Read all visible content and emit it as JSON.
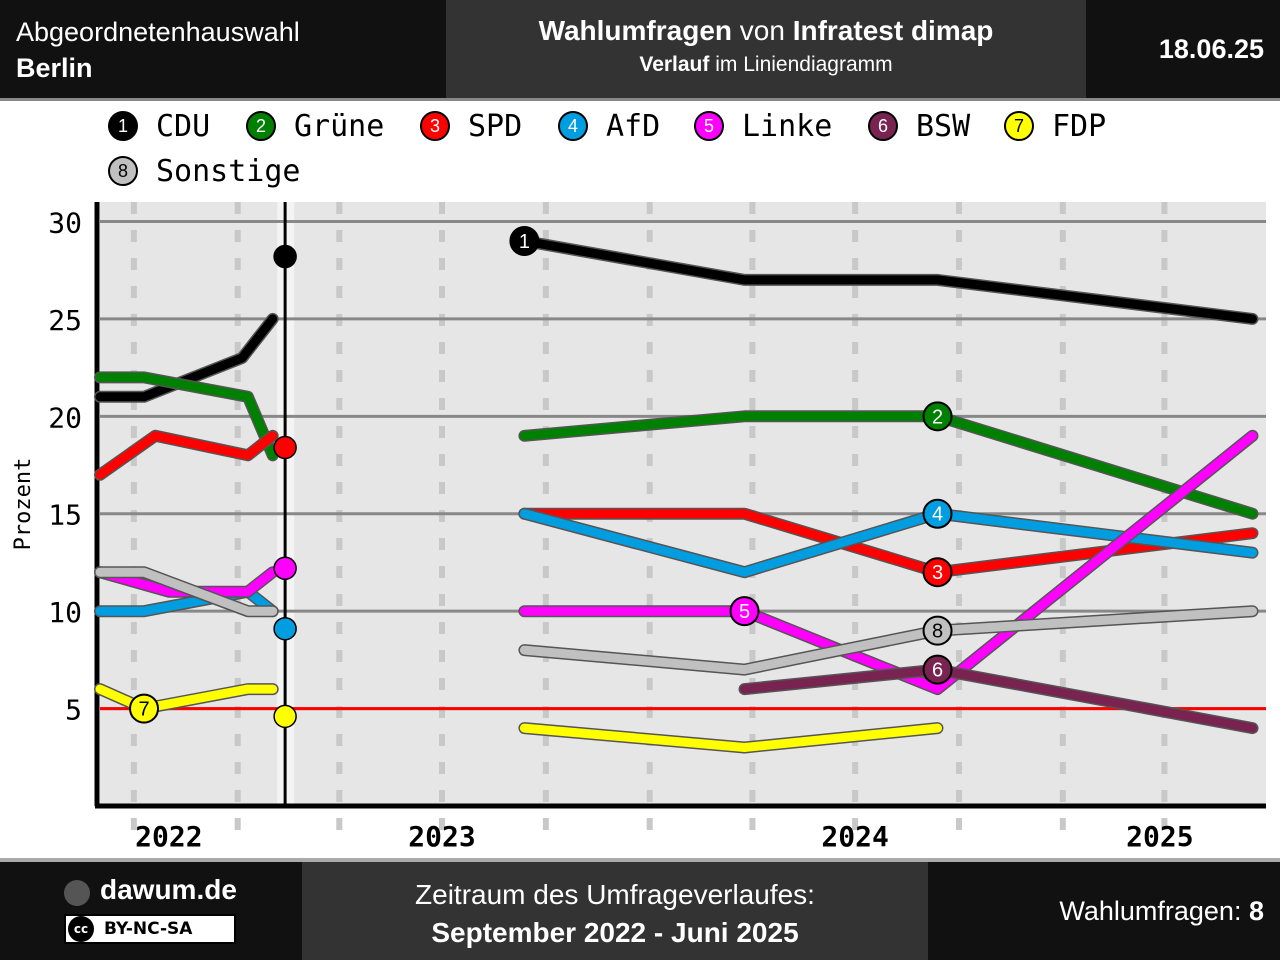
{
  "header": {
    "region_line1": "Abgeordnetenhauswahl",
    "region_line2": "Berlin",
    "title_bold1": "Wahlumfragen",
    "title_mid": " von ",
    "title_bold2": "Infratest dimap",
    "subtitle_bold": "Verlauf",
    "subtitle_rest": " im Liniendiagramm",
    "date": "18.06.25"
  },
  "legend": [
    {
      "num": "1",
      "name": "CDU",
      "color": "#000000",
      "text_color": "#ffffff"
    },
    {
      "num": "2",
      "name": "Grüne",
      "color": "#008000",
      "text_color": "#ffffff"
    },
    {
      "num": "3",
      "name": "SPD",
      "color": "#ff0000",
      "text_color": "#ffffff"
    },
    {
      "num": "4",
      "name": "AfD",
      "color": "#009ee0",
      "text_color": "#ffffff"
    },
    {
      "num": "5",
      "name": "Linke",
      "color": "#ff00ff",
      "text_color": "#ffffff"
    },
    {
      "num": "6",
      "name": "BSW",
      "color": "#792351",
      "text_color": "#ffffff"
    },
    {
      "num": "7",
      "name": "FDP",
      "color": "#ffff00",
      "text_color": "#000000"
    },
    {
      "num": "8",
      "name": "Sonstige",
      "color": "#c0c0c0",
      "text_color": "#000000"
    }
  ],
  "chart_data": {
    "type": "line",
    "ylabel": "Prozent",
    "ylim": [
      0,
      31
    ],
    "xlim": [
      "2022-09-01",
      "2025-06-30"
    ],
    "yticks": [
      5,
      10,
      15,
      20,
      25,
      30
    ],
    "year_labels": [
      "2022",
      "2023",
      "2024",
      "2025"
    ],
    "threshold": 5,
    "threshold_color": "#ff0000",
    "election_date": "2023-02-12",
    "election_results": [
      {
        "party": "CDU",
        "value": 28.2
      },
      {
        "party": "SPD",
        "value": 18.4
      },
      {
        "party": "Linke",
        "value": 12.2
      },
      {
        "party": "AfD",
        "value": 9.1
      },
      {
        "party": "FDP",
        "value": 4.6
      }
    ],
    "series": [
      {
        "name": "CDU",
        "num": "1",
        "color": "#000000",
        "label_at": 0,
        "segments": [
          [
            [
              "2022-09-01",
              21
            ],
            [
              "2022-10-10",
              21
            ],
            [
              "2023-01-05",
              23
            ],
            [
              "2023-02-01",
              25
            ]
          ],
          [
            [
              "2023-09-12",
              29
            ],
            [
              "2024-03-25",
              27
            ],
            [
              "2024-09-12",
              27
            ],
            [
              "2025-06-18",
              25
            ]
          ]
        ]
      },
      {
        "name": "Grüne",
        "num": "2",
        "color": "#008000",
        "label_at": 2,
        "segments": [
          [
            [
              "2022-09-01",
              22
            ],
            [
              "2022-10-10",
              22
            ],
            [
              "2023-01-10",
              21
            ],
            [
              "2023-02-01",
              18
            ]
          ],
          [
            [
              "2023-09-12",
              19
            ],
            [
              "2024-03-25",
              20
            ],
            [
              "2024-09-12",
              20
            ],
            [
              "2025-06-18",
              15
            ]
          ]
        ]
      },
      {
        "name": "SPD",
        "num": "3",
        "color": "#ff0000",
        "label_at": 2,
        "segments": [
          [
            [
              "2022-09-01",
              17
            ],
            [
              "2022-10-20",
              19
            ],
            [
              "2023-01-10",
              18
            ],
            [
              "2023-02-01",
              19
            ]
          ],
          [
            [
              "2023-09-12",
              15
            ],
            [
              "2024-03-25",
              15
            ],
            [
              "2024-09-12",
              12
            ],
            [
              "2025-06-18",
              14
            ]
          ]
        ]
      },
      {
        "name": "AfD",
        "num": "4",
        "color": "#009ee0",
        "label_at": 2,
        "segments": [
          [
            [
              "2022-09-01",
              10
            ],
            [
              "2022-10-10",
              10
            ],
            [
              "2023-01-10",
              11
            ],
            [
              "2023-02-01",
              10
            ]
          ],
          [
            [
              "2023-09-12",
              15
            ],
            [
              "2024-03-25",
              12
            ],
            [
              "2024-09-12",
              15
            ],
            [
              "2025-06-18",
              13
            ]
          ]
        ]
      },
      {
        "name": "Linke",
        "num": "5",
        "color": "#ff00ff",
        "label_at": 1,
        "segments": [
          [
            [
              "2022-09-01",
              12
            ],
            [
              "2022-11-01",
              11
            ],
            [
              "2023-01-10",
              11
            ],
            [
              "2023-02-01",
              12
            ]
          ],
          [
            [
              "2023-09-12",
              10
            ],
            [
              "2024-03-25",
              10
            ],
            [
              "2024-09-12",
              6
            ],
            [
              "2025-06-18",
              19
            ]
          ]
        ]
      },
      {
        "name": "BSW",
        "num": "6",
        "color": "#792351",
        "label_at": 1,
        "segments": [
          [
            [
              "2024-03-25",
              6
            ],
            [
              "2024-09-12",
              7
            ],
            [
              "2025-06-18",
              4
            ]
          ]
        ]
      },
      {
        "name": "FDP",
        "num": "7",
        "color": "#ffff00",
        "label_at": 1,
        "segments": [
          [
            [
              "2022-09-01",
              6
            ],
            [
              "2022-10-10",
              5
            ],
            [
              "2023-01-10",
              6
            ],
            [
              "2023-02-01",
              6
            ]
          ],
          [
            [
              "2023-09-12",
              4
            ],
            [
              "2024-03-25",
              3
            ],
            [
              "2024-09-12",
              4
            ]
          ]
        ]
      },
      {
        "name": "Sonstige",
        "num": "8",
        "color": "#c0c0c0",
        "label_at": 2,
        "segments": [
          [
            [
              "2022-09-01",
              12
            ],
            [
              "2022-10-10",
              12
            ],
            [
              "2023-01-10",
              10
            ],
            [
              "2023-02-01",
              10
            ]
          ],
          [
            [
              "2023-09-12",
              8
            ],
            [
              "2024-03-25",
              7
            ],
            [
              "2024-09-12",
              9
            ],
            [
              "2025-06-18",
              10
            ]
          ]
        ]
      }
    ]
  },
  "footer": {
    "brand": "dawum.de",
    "license": "BY-NC-SA",
    "period_label": "Zeitraum des Umfrageverlaufes:",
    "period_value": "September 2022 - Juni 2025",
    "count_label": "Wahlumfragen: ",
    "count_value": "8"
  }
}
